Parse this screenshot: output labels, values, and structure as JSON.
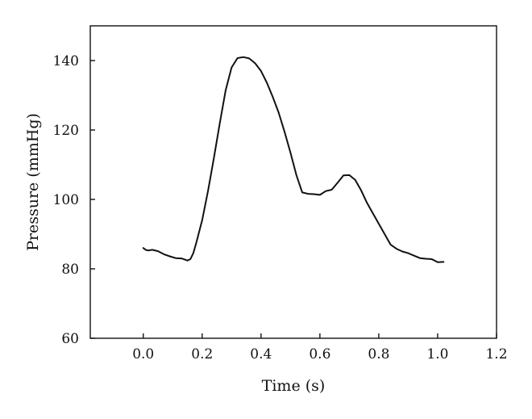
{
  "chart_data": {
    "type": "line",
    "title": "",
    "xlabel": "Time (s)",
    "ylabel": "Pressure (mmHg)",
    "xlim": [
      -0.18,
      1.2
    ],
    "ylim": [
      60,
      150
    ],
    "x_ticks": [
      0.0,
      0.2,
      0.4,
      0.6,
      0.8,
      1.0,
      1.2
    ],
    "x_tick_labels": [
      "0.0",
      "0.2",
      "0.4",
      "0.6",
      "0.8",
      "1.0",
      "1.2"
    ],
    "y_ticks": [
      60,
      80,
      100,
      120,
      140
    ],
    "y_tick_labels": [
      "60",
      "80",
      "100",
      "120",
      "140"
    ],
    "grid": false,
    "legend": "none",
    "line_color": "#111111",
    "series": [
      {
        "x": [
          0.0,
          0.01,
          0.02,
          0.03,
          0.05,
          0.07,
          0.09,
          0.11,
          0.13,
          0.15,
          0.16,
          0.17,
          0.18,
          0.2,
          0.22,
          0.24,
          0.26,
          0.28,
          0.3,
          0.32,
          0.34,
          0.36,
          0.38,
          0.4,
          0.42,
          0.44,
          0.46,
          0.48,
          0.5,
          0.52,
          0.54,
          0.56,
          0.58,
          0.6,
          0.62,
          0.64,
          0.66,
          0.68,
          0.7,
          0.72,
          0.74,
          0.76,
          0.78,
          0.8,
          0.82,
          0.84,
          0.86,
          0.88,
          0.9,
          0.92,
          0.94,
          0.96,
          0.98,
          1.0,
          1.02
        ],
        "y": [
          86,
          85.4,
          85.3,
          85.5,
          85.1,
          84.2,
          83.6,
          83.1,
          83.0,
          82.4,
          82.8,
          84.5,
          87.5,
          94.0,
          102.5,
          112.0,
          122.0,
          131.5,
          138.0,
          140.7,
          141.0,
          140.6,
          139.2,
          137.0,
          133.6,
          129.5,
          125.0,
          119.5,
          113.5,
          107.0,
          102.0,
          101.6,
          101.5,
          101.3,
          102.4,
          102.8,
          104.8,
          106.9,
          107.0,
          105.6,
          102.6,
          99.0,
          96.0,
          93.0,
          90.0,
          87.0,
          85.8,
          85.0,
          84.5,
          83.8,
          83.1,
          82.9,
          82.8,
          81.9,
          82.0
        ]
      }
    ]
  }
}
